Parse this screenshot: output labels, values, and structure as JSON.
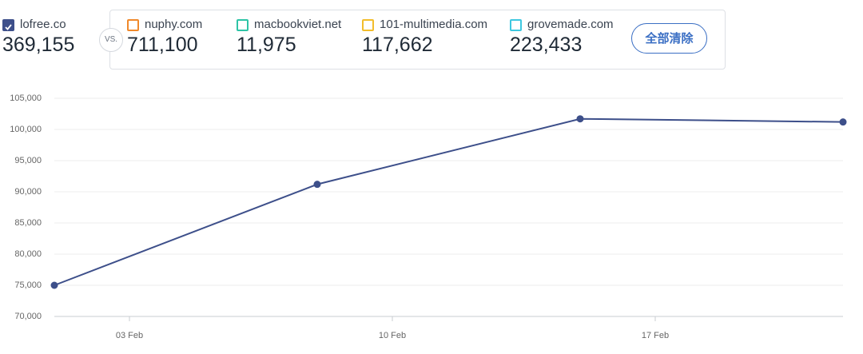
{
  "header": {
    "primary": {
      "name": "lofree.co",
      "value": "369,155",
      "color": "#3d4f8a"
    },
    "vs": "VS.",
    "competitors": [
      {
        "name": "nuphy.com",
        "value": "711,100",
        "color": "#f0892b"
      },
      {
        "name": "macbookviet.net",
        "value": "11,975",
        "color": "#2ec4a6"
      },
      {
        "name": "101-multimedia.com",
        "value": "117,662",
        "color": "#f2bd2c"
      },
      {
        "name": "grovemade.com",
        "value": "223,433",
        "color": "#3ec8e0"
      }
    ],
    "clear_button": "全部清除"
  },
  "chart_data": {
    "type": "line",
    "x": [
      1,
      8,
      15,
      22
    ],
    "xlim": [
      1,
      22
    ],
    "xticks": [
      {
        "value": 3,
        "label": "03 Feb"
      },
      {
        "value": 10,
        "label": "10 Feb"
      },
      {
        "value": 17,
        "label": "17 Feb"
      }
    ],
    "series": [
      {
        "name": "lofree.co",
        "color": "#3d4f8a",
        "values": [
          75000,
          91200,
          101700,
          101200
        ]
      }
    ],
    "ylim": [
      70000,
      105000
    ],
    "yticks": [
      {
        "value": 70000,
        "label": "70,000"
      },
      {
        "value": 75000,
        "label": "75,000"
      },
      {
        "value": 80000,
        "label": "80,000"
      },
      {
        "value": 85000,
        "label": "85,000"
      },
      {
        "value": 90000,
        "label": "90,000"
      },
      {
        "value": 95000,
        "label": "95,000"
      },
      {
        "value": 100000,
        "label": "100,000"
      },
      {
        "value": 105000,
        "label": "105,000"
      }
    ],
    "grid": true
  }
}
